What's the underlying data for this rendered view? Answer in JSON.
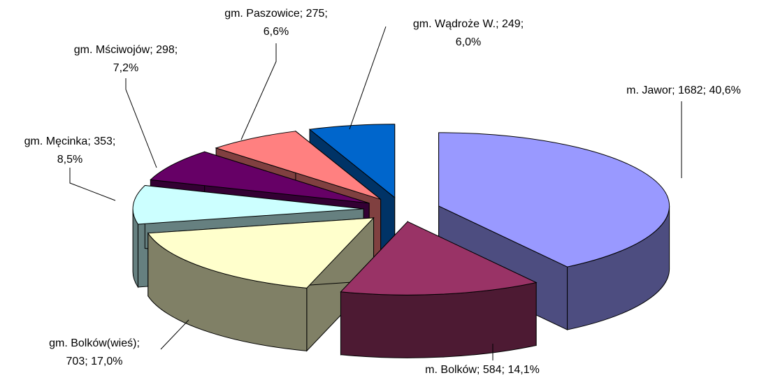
{
  "chart_data": {
    "type": "pie3d",
    "categories": [
      "m. Jawor",
      "m. Bolków",
      "gm. Bolków(wieś)",
      "gm. Męcinka",
      "gm. Mściwojów",
      "gm. Paszowice",
      "gm. Wądroże W."
    ],
    "values": [
      1682,
      584,
      703,
      353,
      298,
      275,
      249
    ],
    "labels": [
      [
        "m. Jawor; 1682; 40,6%"
      ],
      [
        "m. Bolków; 584; 14,1%"
      ],
      [
        "gm. Bolków(wieś);",
        "703; 17,0%"
      ],
      [
        "gm. Męcinka; 353;",
        "8,5%"
      ],
      [
        "gm. Mściwojów; 298;",
        "7,2%"
      ],
      [
        "gm. Paszowice; 275;",
        "6,6%"
      ],
      [
        "gm. Wądroże W.; 249;",
        "6,0%"
      ]
    ],
    "colors": [
      "#9999ff",
      "#993366",
      "#ffffcc",
      "#ccffff",
      "#660066",
      "#ff8080",
      "#0066cc"
    ]
  }
}
